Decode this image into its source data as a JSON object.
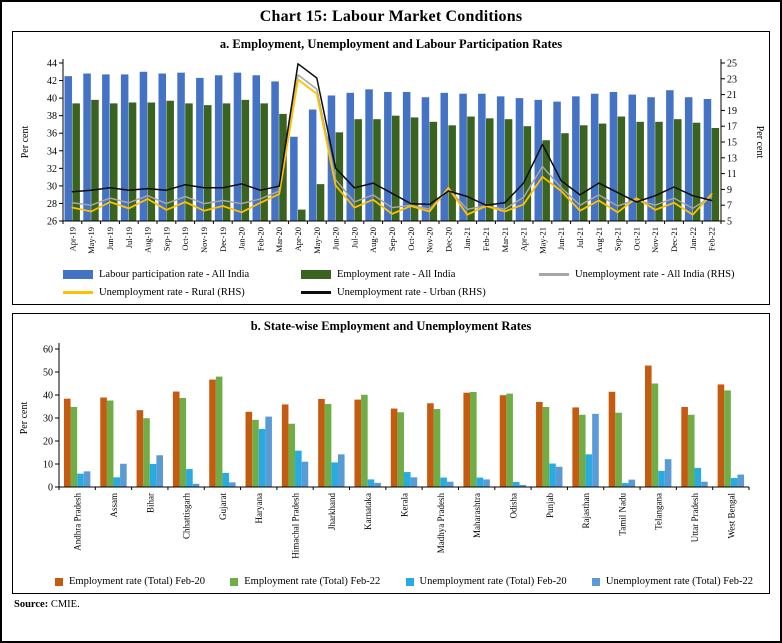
{
  "title": "Chart 15: Labour Market Conditions",
  "source": {
    "label": "Source:",
    "value": "CMIE."
  },
  "colors": {
    "lpr_bar": "#4472C4",
    "er_bar": "#39631F",
    "ur_all_line": "#A6A6A6",
    "ur_rural_line": "#FFC000",
    "ur_urban_line": "#0d0d0d",
    "er_feb20": "#C55A11",
    "er_feb22": "#70AD47",
    "ur_feb20": "#29ABE2",
    "ur_feb22": "#5B9BD5",
    "axis": "#000000"
  },
  "chart_data": [
    {
      "id": "panel-a",
      "type": "bar",
      "subtype": "combo bar+line, dual axis",
      "title": "a. Employment, Unemployment and Labour Participation Rates",
      "ylabel_left": "Per cent",
      "ylabel_right": "Per cent",
      "left_axis": {
        "min": 26,
        "max": 44,
        "step": 2
      },
      "right_axis": {
        "min": 5,
        "max": 25,
        "step": 2
      },
      "grid": "off",
      "legend_position": "bottom",
      "categories": [
        "Apr-19",
        "May-19",
        "Jun-19",
        "Jul-19",
        "Aug-19",
        "Sep-19",
        "Oct-19",
        "Nov-19",
        "Dec-19",
        "Jan-20",
        "Feb-20",
        "Mar-20",
        "Apr-20",
        "May-20",
        "Jun-20",
        "Jul-20",
        "Aug-20",
        "Sep-20",
        "Oct-20",
        "Nov-20",
        "Dec-20",
        "Jan-21",
        "Feb-21",
        "Mar-21",
        "Apr-21",
        "May-21",
        "Jun-21",
        "Jul-21",
        "Aug-21",
        "Sep-21",
        "Oct-21",
        "Nov-21",
        "Dec-21",
        "Jan-22",
        "Feb-22"
      ],
      "bar_series": [
        {
          "name": "Labour participation rate - All India",
          "axis": "left",
          "color": "lpr_bar",
          "values": [
            42.5,
            42.8,
            42.7,
            42.7,
            43.0,
            42.8,
            42.9,
            42.3,
            42.6,
            42.9,
            42.6,
            41.9,
            35.6,
            38.7,
            40.3,
            40.6,
            41.0,
            40.7,
            40.7,
            40.1,
            40.6,
            40.5,
            40.5,
            40.2,
            40.0,
            39.8,
            39.6,
            40.2,
            40.5,
            40.7,
            40.4,
            40.1,
            40.9,
            40.1,
            39.9
          ]
        },
        {
          "name": "Employment rate - All India",
          "axis": "left",
          "color": "er_bar",
          "values": [
            39.4,
            39.8,
            39.4,
            39.5,
            39.5,
            39.7,
            39.4,
            39.2,
            39.4,
            39.8,
            39.4,
            38.2,
            27.3,
            30.2,
            36.1,
            37.6,
            37.6,
            38.0,
            37.8,
            37.3,
            36.9,
            37.9,
            37.7,
            37.6,
            36.8,
            35.2,
            36.0,
            36.9,
            37.1,
            37.9,
            37.3,
            37.3,
            37.6,
            37.2,
            36.6
          ]
        }
      ],
      "line_series": [
        {
          "name": "Unemployment rate - All India (RHS)",
          "axis": "right",
          "color": "ur_all_line",
          "width": 1.5,
          "values": [
            7.3,
            7.0,
            7.9,
            7.3,
            8.2,
            7.2,
            8.1,
            7.2,
            7.6,
            7.2,
            7.8,
            8.8,
            23.5,
            21.7,
            10.2,
            7.4,
            8.3,
            6.7,
            7.0,
            6.5,
            9.1,
            6.5,
            6.9,
            6.5,
            8.0,
            11.9,
            9.2,
            7.0,
            8.3,
            6.9,
            7.7,
            7.0,
            7.9,
            6.6,
            8.1
          ]
        },
        {
          "name": "Unemployment rate - Rural (RHS)",
          "axis": "right",
          "color": "ur_rural_line",
          "width": 1.8,
          "values": [
            6.7,
            6.2,
            7.4,
            6.6,
            7.8,
            6.4,
            7.4,
            6.3,
            6.9,
            6.1,
            7.3,
            8.4,
            22.9,
            21.1,
            9.5,
            6.7,
            7.7,
            5.9,
            6.9,
            6.2,
            9.2,
            5.8,
            6.9,
            6.2,
            7.1,
            10.6,
            8.8,
            6.3,
            7.6,
            6.1,
            7.9,
            6.4,
            7.3,
            5.8,
            8.4
          ]
        },
        {
          "name": "Unemployment rate - Urban (RHS)",
          "axis": "right",
          "color": "ur_urban_line",
          "width": 1.5,
          "values": [
            8.7,
            8.9,
            9.2,
            8.9,
            9.1,
            8.9,
            9.6,
            9.2,
            9.2,
            9.7,
            8.9,
            9.4,
            24.9,
            23.1,
            11.7,
            9.2,
            9.8,
            8.5,
            7.2,
            7.1,
            8.8,
            8.1,
            7.0,
            7.3,
            9.8,
            14.7,
            10.1,
            8.3,
            9.8,
            8.6,
            7.4,
            8.2,
            9.3,
            8.2,
            7.6
          ]
        }
      ]
    },
    {
      "id": "panel-b",
      "type": "bar",
      "subtype": "grouped vertical bars",
      "title": "b. State-wise Employment and Unemployment Rates",
      "ylabel": "Per cent",
      "y_axis": {
        "min": 0,
        "max": 60,
        "step": 10
      },
      "grid": "off",
      "legend_position": "bottom",
      "categories": [
        "Andhra Pradesh",
        "Assam",
        "Bihar",
        "Chhattisgarh",
        "Gujarat",
        "Haryana",
        "Himachal Pradesh",
        "Jharkhand",
        "Karnataka",
        "Kerala",
        "Madhya Pradesh",
        "Maharashtra",
        "Odisha",
        "Punjab",
        "Rajasthan",
        "Tamil Nadu",
        "Telangana",
        "Uttar Pradesh",
        "West Bengal"
      ],
      "series": [
        {
          "name": "Employment rate (Total) Feb-20",
          "color": "er_feb20",
          "values": [
            38.4,
            38.9,
            33.4,
            41.5,
            46.7,
            32.7,
            35.9,
            38.3,
            38.0,
            34.1,
            36.4,
            41.0,
            39.9,
            37.0,
            34.6,
            41.4,
            52.8,
            34.8,
            44.6
          ]
        },
        {
          "name": "Employment rate (Total) Feb-22",
          "color": "er_feb22",
          "values": [
            34.8,
            37.6,
            29.9,
            38.7,
            48.0,
            29.2,
            27.5,
            36.1,
            40.1,
            32.5,
            33.9,
            41.3,
            40.6,
            34.8,
            31.4,
            32.3,
            45.0,
            31.4,
            42.0
          ]
        },
        {
          "name": "Unemployment rate (Total) Feb-20",
          "color": "ur_feb20",
          "values": [
            5.8,
            4.2,
            10.0,
            7.8,
            6.1,
            25.2,
            15.8,
            10.7,
            3.3,
            6.5,
            4.1,
            4.1,
            2.2,
            10.2,
            14.2,
            1.7,
            7.0,
            8.3,
            3.9
          ]
        },
        {
          "name": "Unemployment rate (Total) Feb-22",
          "color": "ur_feb22",
          "values": [
            6.8,
            10.1,
            13.8,
            1.4,
            2.0,
            30.6,
            11.0,
            14.2,
            1.8,
            4.2,
            2.3,
            3.3,
            0.9,
            8.8,
            31.8,
            3.2,
            12.1,
            2.3,
            5.4
          ]
        }
      ]
    }
  ]
}
